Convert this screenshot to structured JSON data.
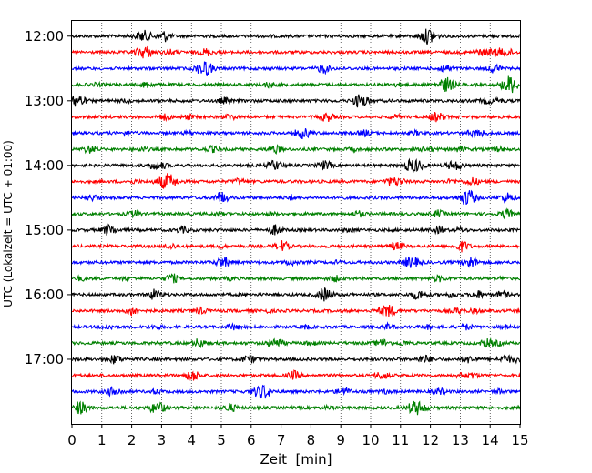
{
  "chart_data": {
    "type": "line",
    "title": "",
    "xlabel": "Zeit  [min]",
    "ylabel": "UTC (Lokalzeit = UTC + 01:00)",
    "xlim": [
      0,
      15
    ],
    "xticks": [
      "0",
      "1",
      "2",
      "3",
      "4",
      "5",
      "6",
      "7",
      "8",
      "9",
      "10",
      "11",
      "12",
      "13",
      "14",
      "15"
    ],
    "ylim_traces": [
      -1,
      24
    ],
    "yticks": [
      {
        "trace_index": 0,
        "label": "12:00"
      },
      {
        "trace_index": 4,
        "label": "13:00"
      },
      {
        "trace_index": 8,
        "label": "14:00"
      },
      {
        "trace_index": 12,
        "label": "15:00"
      },
      {
        "trace_index": 16,
        "label": "16:00"
      },
      {
        "trace_index": 20,
        "label": "17:00"
      }
    ],
    "grid": "vertical dotted at each minute",
    "trace_colors": [
      "#000000",
      "#ff0000",
      "#0000ff",
      "#008000"
    ],
    "trace_count": 24,
    "trace_interval_minutes": 15,
    "start_time": "12:00",
    "events": [
      [
        [
          2.4,
          0.6,
          3.1,
          0.25
        ],
        [
          3.1,
          0.35,
          6.6,
          0.08
        ],
        [
          11.9,
          0.7,
          12.0,
          0.2
        ]
      ],
      [
        [
          2.4,
          0.6,
          2.55,
          0.15
        ],
        [
          4.5,
          0.4,
          3.3,
          0.25
        ],
        [
          13.8,
          0.2,
          14.2,
          0.45
        ],
        [
          14.6,
          0.3,
          13.6,
          0.2
        ]
      ],
      [
        [
          4.4,
          0.6,
          4.5,
          0.35
        ],
        [
          8.4,
          0.35,
          8.45,
          0.15
        ],
        [
          12.6,
          0.2,
          12.4,
          0.3
        ],
        [
          14.1,
          0.2,
          14.2,
          0.3
        ]
      ],
      [
        [
          2.5,
          0.3,
          0.85,
          0.15
        ],
        [
          12.5,
          0.5,
          12.6,
          0.35
        ],
        [
          14.7,
          0.6,
          14.6,
          0.45
        ],
        [
          6.6,
          0.3,
          10.9,
          0.15
        ]
      ],
      [
        [
          0.1,
          0.5,
          0.25,
          0.35
        ],
        [
          9.7,
          0.5,
          9.6,
          0.3
        ],
        [
          5.1,
          0.3,
          14.3,
          0.2
        ],
        [
          13.9,
          0.3,
          1.8,
          0.15
        ]
      ],
      [
        [
          3.1,
          0.3,
          3.9,
          0.25
        ],
        [
          5.3,
          0.3,
          12.1,
          0.3
        ],
        [
          8.6,
          0.3,
          8.45,
          0.25
        ],
        [
          12.3,
          0.3,
          10.85,
          0.2
        ]
      ],
      [
        [
          7.6,
          0.3,
          7.8,
          0.4
        ],
        [
          13.7,
          0.25,
          13.4,
          0.3
        ],
        [
          1.85,
          0.2,
          3.9,
          0.15
        ],
        [
          9.8,
          0.3,
          11.5,
          0.2
        ]
      ],
      [
        [
          0.6,
          0.4,
          2.4,
          0.2
        ],
        [
          6.8,
          0.4,
          14.3,
          0.2
        ],
        [
          11.9,
          0.3,
          13.0,
          0.25
        ],
        [
          4.7,
          0.3,
          9.4,
          0.15
        ]
      ],
      [
        [
          3.0,
          0.3,
          2.7,
          0.3
        ],
        [
          8.4,
          0.3,
          6.8,
          0.5
        ],
        [
          11.5,
          0.6,
          11.3,
          0.3
        ],
        [
          12.8,
          0.5,
          8.55,
          0.25
        ]
      ],
      [
        [
          3.1,
          0.6,
          3.3,
          0.45
        ],
        [
          10.9,
          0.4,
          10.6,
          0.25
        ],
        [
          13.4,
          0.4,
          12.7,
          0.2
        ],
        [
          5.6,
          0.3,
          2.1,
          0.15
        ]
      ],
      [
        [
          5.0,
          0.4,
          5.0,
          0.25
        ],
        [
          13.2,
          0.5,
          13.3,
          0.45
        ],
        [
          14.5,
          0.3,
          14.6,
          0.3
        ],
        [
          0.65,
          0.3,
          7.3,
          0.2
        ]
      ],
      [
        [
          12.3,
          0.2,
          12.2,
          0.2
        ],
        [
          14.5,
          0.2,
          14.6,
          0.3
        ],
        [
          2.1,
          0.3,
          6.7,
          0.15
        ],
        [
          9.6,
          0.3,
          4.9,
          0.15
        ]
      ],
      [
        [
          1.3,
          0.3,
          1.2,
          0.3
        ],
        [
          6.8,
          0.3,
          6.8,
          0.25
        ],
        [
          12.3,
          0.3,
          13.0,
          0.2
        ],
        [
          3.7,
          0.3,
          9.3,
          0.15
        ]
      ],
      [
        [
          7.0,
          0.4,
          7.1,
          0.2
        ],
        [
          10.8,
          0.3,
          11.0,
          0.2
        ],
        [
          13.1,
          0.4,
          13.0,
          0.2
        ],
        [
          3.3,
          0.3,
          5.0,
          0.15
        ]
      ],
      [
        [
          5.0,
          0.3,
          5.1,
          0.35
        ],
        [
          11.4,
          0.5,
          11.2,
          0.2
        ],
        [
          13.3,
          0.4,
          13.4,
          0.3
        ],
        [
          7.3,
          0.3,
          8.9,
          0.15
        ]
      ],
      [
        [
          3.3,
          0.3,
          3.4,
          0.25
        ],
        [
          8.8,
          0.3,
          5.3,
          0.15
        ],
        [
          12.3,
          0.3,
          14.4,
          0.15
        ],
        [
          0.3,
          0.2,
          1.8,
          0.15
        ]
      ],
      [
        [
          2.8,
          0.4,
          2.7,
          0.2
        ],
        [
          8.5,
          0.5,
          8.4,
          0.3
        ],
        [
          11.6,
          0.5,
          12.7,
          0.25
        ],
        [
          13.6,
          0.4,
          14.4,
          0.35
        ]
      ],
      [
        [
          2.0,
          0.3,
          2.1,
          0.25
        ],
        [
          10.5,
          0.5,
          10.7,
          0.3
        ],
        [
          12.9,
          0.3,
          13.5,
          0.2
        ],
        [
          4.3,
          0.3,
          6.5,
          0.15
        ]
      ],
      [
        [
          1.2,
          0.3,
          2.8,
          0.2
        ],
        [
          5.4,
          0.3,
          7.8,
          0.2
        ],
        [
          10.6,
          0.3,
          11.9,
          0.2
        ],
        [
          13.2,
          0.3,
          14.5,
          0.2
        ]
      ],
      [
        [
          4.3,
          0.3,
          4.2,
          0.2
        ],
        [
          6.8,
          0.5,
          8.0,
          0.2
        ],
        [
          10.4,
          0.4,
          11.1,
          0.2
        ],
        [
          13.9,
          0.4,
          14.3,
          0.2
        ]
      ],
      [
        [
          1.4,
          0.3,
          1.5,
          0.2
        ],
        [
          6.0,
          0.3,
          5.8,
          0.2
        ],
        [
          11.8,
          0.4,
          13.3,
          0.35
        ],
        [
          14.5,
          0.4,
          14.9,
          0.25
        ]
      ],
      [
        [
          4.0,
          0.4,
          4.1,
          0.25
        ],
        [
          7.4,
          0.3,
          7.5,
          0.2
        ],
        [
          10.3,
          0.3,
          10.5,
          0.2
        ],
        [
          13.4,
          0.3,
          13.0,
          0.2
        ]
      ],
      [
        [
          1.4,
          0.5,
          2.8,
          0.2
        ],
        [
          6.3,
          0.6,
          6.5,
          0.3
        ],
        [
          9.1,
          0.4,
          10.5,
          0.2
        ],
        [
          12.3,
          0.3,
          14.3,
          0.2
        ]
      ],
      [
        [
          0.3,
          0.5,
          0.2,
          0.25
        ],
        [
          2.8,
          0.5,
          3.0,
          0.25
        ],
        [
          11.6,
          0.6,
          11.4,
          0.3
        ],
        [
          5.3,
          0.4,
          8.6,
          0.15
        ]
      ]
    ]
  }
}
